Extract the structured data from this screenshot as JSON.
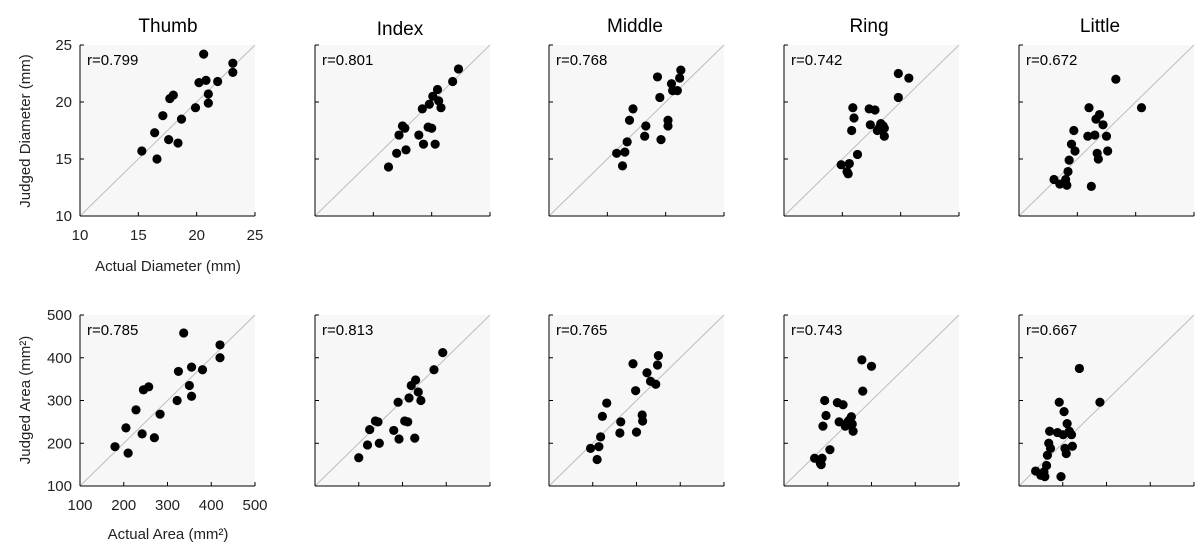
{
  "chart_data": [
    {
      "type": "scatter",
      "title": "Thumb",
      "annotation": "r=0.799",
      "xlabel": "Actual Diameter (mm)",
      "ylabel": "Judged Diameter (mm)",
      "xlim": [
        10,
        25
      ],
      "ylim": [
        10,
        25
      ],
      "xticks": [
        "10",
        "15",
        "20",
        "25"
      ],
      "yticks": [
        "10",
        "15",
        "20",
        "25"
      ],
      "identity_line": true,
      "points": [
        [
          15.3,
          15.7
        ],
        [
          16.4,
          17.3
        ],
        [
          16.6,
          15.0
        ],
        [
          17.1,
          18.8
        ],
        [
          17.6,
          16.7
        ],
        [
          17.7,
          20.3
        ],
        [
          18.0,
          20.6
        ],
        [
          18.4,
          16.4
        ],
        [
          18.7,
          18.5
        ],
        [
          19.9,
          19.5
        ],
        [
          20.2,
          21.7
        ],
        [
          20.6,
          24.2
        ],
        [
          20.8,
          21.9
        ],
        [
          21.0,
          20.7
        ],
        [
          21.0,
          19.9
        ],
        [
          21.8,
          21.8
        ],
        [
          23.1,
          23.4
        ],
        [
          23.1,
          22.6
        ]
      ]
    },
    {
      "type": "scatter",
      "title": "Index",
      "annotation": "r=0.801",
      "xlim": [
        10,
        25
      ],
      "ylim": [
        10,
        25
      ],
      "identity_line": true,
      "points": [
        [
          16.3,
          14.3
        ],
        [
          17.0,
          15.5
        ],
        [
          17.2,
          17.1
        ],
        [
          17.5,
          17.9
        ],
        [
          17.7,
          17.7
        ],
        [
          17.8,
          15.8
        ],
        [
          18.9,
          17.1
        ],
        [
          19.3,
          16.3
        ],
        [
          19.2,
          19.4
        ],
        [
          19.7,
          17.8
        ],
        [
          20.0,
          17.7
        ],
        [
          19.8,
          19.8
        ],
        [
          20.3,
          16.3
        ],
        [
          20.1,
          20.5
        ],
        [
          20.6,
          20.1
        ],
        [
          20.8,
          19.5
        ],
        [
          20.5,
          21.1
        ],
        [
          21.8,
          21.8
        ],
        [
          22.3,
          22.9
        ]
      ]
    },
    {
      "type": "scatter",
      "title": "Middle",
      "annotation": "r=0.768",
      "xlim": [
        10,
        25
      ],
      "ylim": [
        10,
        25
      ],
      "identity_line": true,
      "points": [
        [
          15.8,
          15.5
        ],
        [
          16.3,
          14.4
        ],
        [
          16.5,
          15.6
        ],
        [
          16.7,
          16.5
        ],
        [
          16.9,
          18.4
        ],
        [
          17.2,
          19.4
        ],
        [
          18.2,
          17.0
        ],
        [
          18.3,
          17.9
        ],
        [
          19.3,
          22.2
        ],
        [
          19.5,
          20.4
        ],
        [
          19.6,
          16.7
        ],
        [
          20.2,
          17.9
        ],
        [
          20.2,
          18.4
        ],
        [
          20.5,
          21.6
        ],
        [
          20.6,
          21.0
        ],
        [
          21.0,
          21.0
        ],
        [
          21.2,
          22.1
        ],
        [
          21.3,
          22.8
        ]
      ]
    },
    {
      "type": "scatter",
      "title": "Ring",
      "annotation": "r=0.742",
      "xlim": [
        10,
        25
      ],
      "ylim": [
        10,
        25
      ],
      "identity_line": true,
      "points": [
        [
          14.9,
          14.5
        ],
        [
          15.4,
          13.9
        ],
        [
          15.5,
          13.7
        ],
        [
          15.6,
          14.6
        ],
        [
          15.8,
          17.5
        ],
        [
          15.9,
          19.5
        ],
        [
          16.0,
          18.6
        ],
        [
          16.3,
          15.4
        ],
        [
          17.3,
          19.4
        ],
        [
          17.4,
          18.0
        ],
        [
          17.8,
          19.3
        ],
        [
          18.0,
          17.5
        ],
        [
          18.2,
          17.8
        ],
        [
          18.3,
          18.1
        ],
        [
          18.4,
          17.5
        ],
        [
          18.5,
          17.9
        ],
        [
          18.6,
          17.7
        ],
        [
          18.6,
          17.0
        ],
        [
          19.8,
          22.5
        ],
        [
          19.8,
          20.4
        ],
        [
          20.7,
          22.1
        ]
      ]
    },
    {
      "type": "scatter",
      "title": "Little",
      "annotation": "r=0.672",
      "xlim": [
        10,
        25
      ],
      "ylim": [
        10,
        25
      ],
      "identity_line": true,
      "points": [
        [
          13.0,
          13.2
        ],
        [
          13.5,
          12.8
        ],
        [
          14.0,
          13.2
        ],
        [
          14.1,
          12.7
        ],
        [
          14.2,
          13.9
        ],
        [
          14.3,
          14.9
        ],
        [
          14.5,
          16.3
        ],
        [
          14.8,
          15.7
        ],
        [
          14.7,
          17.5
        ],
        [
          15.9,
          17.0
        ],
        [
          16.0,
          19.5
        ],
        [
          16.2,
          12.6
        ],
        [
          16.5,
          17.1
        ],
        [
          16.6,
          18.5
        ],
        [
          16.7,
          15.5
        ],
        [
          16.8,
          15.0
        ],
        [
          16.9,
          18.9
        ],
        [
          17.2,
          18.0
        ],
        [
          17.5,
          17.0
        ],
        [
          17.6,
          15.7
        ],
        [
          18.3,
          22.0
        ],
        [
          20.5,
          19.5
        ]
      ]
    },
    {
      "type": "scatter",
      "annotation": "r=0.785",
      "xlabel": "Actual Area (mm²)",
      "ylabel": "Judged Area (mm²)",
      "xlim": [
        100,
        500
      ],
      "ylim": [
        100,
        500
      ],
      "xticks": [
        "100",
        "200",
        "300",
        "400",
        "500"
      ],
      "yticks": [
        "100",
        "200",
        "300",
        "400",
        "500"
      ],
      "identity_line": true,
      "points": [
        [
          180,
          192
        ],
        [
          205,
          236
        ],
        [
          210,
          177
        ],
        [
          228,
          278
        ],
        [
          242,
          222
        ],
        [
          245,
          325
        ],
        [
          257,
          332
        ],
        [
          270,
          213
        ],
        [
          283,
          268
        ],
        [
          322,
          300
        ],
        [
          325,
          368
        ],
        [
          337,
          458
        ],
        [
          350,
          335
        ],
        [
          355,
          378
        ],
        [
          355,
          310
        ],
        [
          380,
          372
        ],
        [
          420,
          430
        ],
        [
          420,
          400
        ]
      ]
    },
    {
      "type": "scatter",
      "annotation": "r=0.813",
      "xlim": [
        100,
        500
      ],
      "ylim": [
        100,
        500
      ],
      "identity_line": true,
      "points": [
        [
          200,
          166
        ],
        [
          220,
          196
        ],
        [
          225,
          232
        ],
        [
          238,
          252
        ],
        [
          244,
          250
        ],
        [
          247,
          200
        ],
        [
          280,
          230
        ],
        [
          292,
          210
        ],
        [
          290,
          296
        ],
        [
          305,
          252
        ],
        [
          312,
          250
        ],
        [
          315,
          306
        ],
        [
          328,
          212
        ],
        [
          320,
          335
        ],
        [
          336,
          320
        ],
        [
          342,
          300
        ],
        [
          330,
          348
        ],
        [
          372,
          372
        ],
        [
          392,
          412
        ]
      ]
    },
    {
      "type": "scatter",
      "annotation": "r=0.765",
      "xlim": [
        100,
        500
      ],
      "ylim": [
        100,
        500
      ],
      "identity_line": true,
      "points": [
        [
          195,
          188
        ],
        [
          210,
          162
        ],
        [
          214,
          192
        ],
        [
          218,
          215
        ],
        [
          222,
          263
        ],
        [
          232,
          294
        ],
        [
          262,
          224
        ],
        [
          264,
          250
        ],
        [
          292,
          386
        ],
        [
          298,
          323
        ],
        [
          300,
          226
        ],
        [
          313,
          266
        ],
        [
          314,
          252
        ],
        [
          324,
          365
        ],
        [
          332,
          345
        ],
        [
          344,
          338
        ],
        [
          348,
          383
        ],
        [
          350,
          405
        ]
      ]
    },
    {
      "type": "scatter",
      "annotation": "r=0.743",
      "xlim": [
        100,
        500
      ],
      "ylim": [
        100,
        500
      ],
      "identity_line": true,
      "points": [
        [
          170,
          165
        ],
        [
          183,
          153
        ],
        [
          185,
          150
        ],
        [
          187,
          165
        ],
        [
          189,
          240
        ],
        [
          193,
          300
        ],
        [
          196,
          265
        ],
        [
          205,
          185
        ],
        [
          222,
          295
        ],
        [
          226,
          250
        ],
        [
          235,
          290
        ],
        [
          240,
          240
        ],
        [
          246,
          250
        ],
        [
          249,
          254
        ],
        [
          252,
          242
        ],
        [
          254,
          262
        ],
        [
          256,
          245
        ],
        [
          258,
          228
        ],
        [
          278,
          395
        ],
        [
          280,
          322
        ],
        [
          300,
          380
        ]
      ]
    },
    {
      "type": "scatter",
      "annotation": "r=0.667",
      "xlim": [
        100,
        500
      ],
      "ylim": [
        100,
        500
      ],
      "identity_line": true,
      "points": [
        [
          138,
          135
        ],
        [
          150,
          125
        ],
        [
          157,
          133
        ],
        [
          159,
          122
        ],
        [
          163,
          148
        ],
        [
          165,
          172
        ],
        [
          168,
          200
        ],
        [
          172,
          188
        ],
        [
          170,
          228
        ],
        [
          188,
          225
        ],
        [
          192,
          296
        ],
        [
          196,
          122
        ],
        [
          201,
          220
        ],
        [
          203,
          274
        ],
        [
          205,
          188
        ],
        [
          208,
          176
        ],
        [
          210,
          246
        ],
        [
          215,
          228
        ],
        [
          220,
          220
        ],
        [
          222,
          193
        ],
        [
          238,
          375
        ],
        [
          285,
          296
        ]
      ]
    }
  ]
}
